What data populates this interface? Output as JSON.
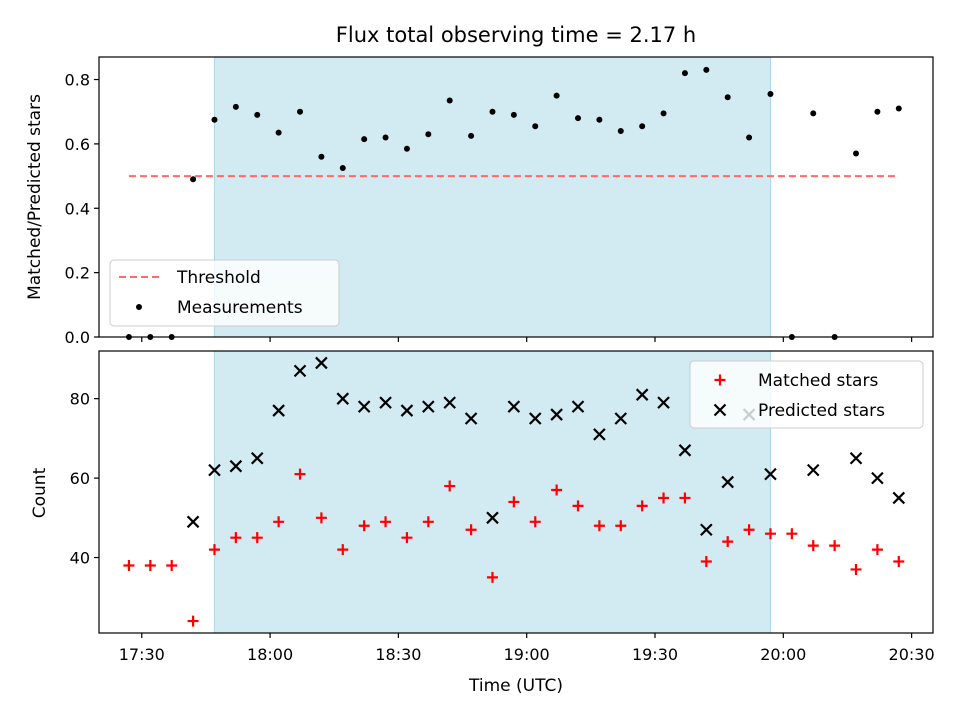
{
  "chart_data": [
    {
      "type": "scatter",
      "title": "Flux total observing time = 2.17 h",
      "xlabel": "",
      "ylabel": "Matched/Predicted stars",
      "xlim": [
        "17:20",
        "20:35"
      ],
      "ylim": [
        0,
        0.87
      ],
      "yticks": [
        0.0,
        0.2,
        0.4,
        0.6,
        0.8
      ],
      "ytick_labels": [
        "0.0",
        "0.2",
        "0.4",
        "0.6",
        "0.8"
      ],
      "shaded_region": {
        "x": [
          "17:47",
          "19:57"
        ],
        "color": "#add8e6"
      },
      "threshold": {
        "name": "Threshold",
        "value": 0.5,
        "x": [
          "17:27",
          "20:27"
        ],
        "color": "#ff6b6b",
        "style": "dashed"
      },
      "legend": {
        "position": "lower-left",
        "entries": [
          "Threshold",
          "Measurements"
        ]
      },
      "series": [
        {
          "name": "Measurements",
          "color": "#000000",
          "marker": "dot",
          "x": [
            "17:27",
            "17:32",
            "17:37",
            "17:42",
            "17:47",
            "17:52",
            "17:57",
            "18:02",
            "18:07",
            "18:12",
            "18:17",
            "18:22",
            "18:27",
            "18:32",
            "18:37",
            "18:42",
            "18:47",
            "18:52",
            "18:57",
            "19:02",
            "19:07",
            "19:12",
            "19:17",
            "19:22",
            "19:27",
            "19:32",
            "19:37",
            "19:42",
            "19:47",
            "19:52",
            "19:57",
            "20:02",
            "20:07",
            "20:12",
            "20:17",
            "20:22",
            "20:27"
          ],
          "values": [
            0.0,
            0.0,
            0.0,
            0.49,
            0.675,
            0.715,
            0.69,
            0.635,
            0.7,
            0.56,
            0.525,
            0.615,
            0.62,
            0.585,
            0.63,
            0.735,
            0.625,
            0.7,
            0.69,
            0.655,
            0.75,
            0.68,
            0.675,
            0.64,
            0.655,
            0.695,
            0.82,
            0.83,
            0.745,
            0.62,
            0.755,
            0.0,
            0.695,
            0.0,
            0.57,
            0.7,
            0.71
          ]
        }
      ]
    },
    {
      "type": "scatter",
      "title": "",
      "xlabel": "Time (UTC)",
      "ylabel": "Count",
      "xlim": [
        "17:20",
        "20:35"
      ],
      "ylim": [
        21,
        92
      ],
      "yticks": [
        40,
        60,
        80
      ],
      "ytick_labels": [
        "40",
        "60",
        "80"
      ],
      "xticks": [
        "17:30",
        "18:00",
        "18:30",
        "19:00",
        "19:30",
        "20:00",
        "20:30"
      ],
      "xtick_labels": [
        "17:30",
        "18:00",
        "18:30",
        "19:00",
        "19:30",
        "20:00",
        "20:30"
      ],
      "shaded_region": {
        "x": [
          "17:47",
          "19:57"
        ],
        "color": "#add8e6"
      },
      "legend": {
        "position": "top-right",
        "entries": [
          "Matched stars",
          "Predicted stars"
        ]
      },
      "series": [
        {
          "name": "Matched stars",
          "color": "#ff0000",
          "marker": "plus",
          "x": [
            "17:27",
            "17:32",
            "17:37",
            "17:42",
            "17:47",
            "17:52",
            "17:57",
            "18:02",
            "18:07",
            "18:12",
            "18:17",
            "18:22",
            "18:27",
            "18:32",
            "18:37",
            "18:42",
            "18:47",
            "18:52",
            "18:57",
            "19:02",
            "19:07",
            "19:12",
            "19:17",
            "19:22",
            "19:27",
            "19:32",
            "19:37",
            "19:42",
            "19:47",
            "19:52",
            "19:57",
            "20:02",
            "20:07",
            "20:12",
            "20:17",
            "20:22",
            "20:27"
          ],
          "values": [
            38,
            38,
            38,
            24,
            42,
            45,
            45,
            49,
            61,
            50,
            42,
            48,
            49,
            45,
            49,
            58,
            47,
            35,
            54,
            49,
            57,
            53,
            48,
            48,
            53,
            55,
            55,
            39,
            44,
            47,
            46,
            46,
            43,
            43,
            37,
            42,
            39
          ]
        },
        {
          "name": "Predicted stars",
          "color": "#000000",
          "marker": "x",
          "x": [
            "17:42",
            "17:47",
            "17:52",
            "17:57",
            "18:02",
            "18:07",
            "18:12",
            "18:17",
            "18:22",
            "18:27",
            "18:32",
            "18:37",
            "18:42",
            "18:47",
            "18:52",
            "18:57",
            "19:02",
            "19:07",
            "19:12",
            "19:17",
            "19:22",
            "19:27",
            "19:32",
            "19:37",
            "19:42",
            "19:47",
            "19:52",
            "19:57",
            "20:07",
            "20:17",
            "20:22",
            "20:27"
          ],
          "values": [
            49,
            62,
            63,
            65,
            77,
            87,
            89,
            80,
            78,
            79,
            77,
            78,
            79,
            75,
            50,
            78,
            75,
            76,
            78,
            71,
            75,
            81,
            79,
            67,
            47,
            59,
            76,
            61,
            62,
            65,
            60,
            55
          ]
        }
      ]
    }
  ]
}
